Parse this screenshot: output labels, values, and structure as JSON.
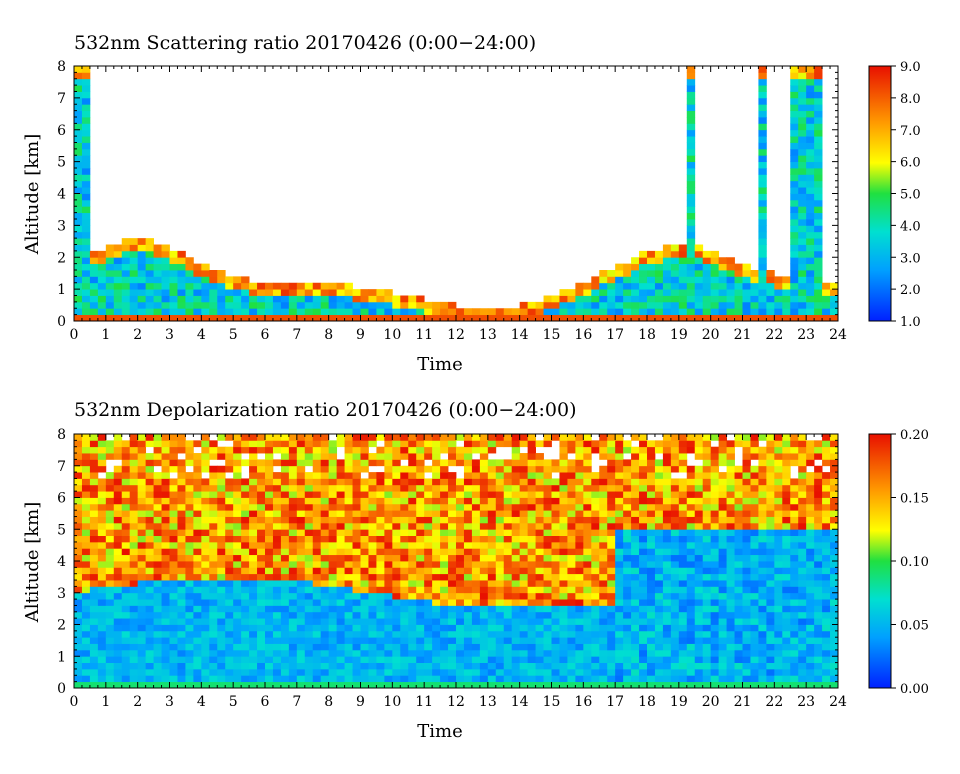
{
  "chart_data": [
    {
      "type": "heatmap",
      "title": "532nm Scattering ratio  20170426 (0:00−24:00)",
      "xlabel": "Time",
      "ylabel": "Altitude [km]",
      "xlim": [
        0,
        24
      ],
      "ylim": [
        0,
        8
      ],
      "xticks": [
        "0",
        "1",
        "2",
        "3",
        "4",
        "5",
        "6",
        "7",
        "8",
        "9",
        "10",
        "11",
        "12",
        "13",
        "14",
        "15",
        "16",
        "17",
        "18",
        "19",
        "20",
        "21",
        "22",
        "23",
        "24"
      ],
      "yticks": [
        "0",
        "1",
        "2",
        "3",
        "4",
        "5",
        "6",
        "7",
        "8"
      ],
      "colorbar": {
        "min": 1.0,
        "max": 9.0,
        "ticks": [
          "1.0",
          "2.0",
          "3.0",
          "4.0",
          "5.0",
          "6.0",
          "7.0",
          "8.0",
          "9.0"
        ]
      },
      "colormap": [
        "#0000ff",
        "#00d0ff",
        "#00e040",
        "#ffff00",
        "#ff8000",
        "#e00000"
      ]
    },
    {
      "type": "heatmap",
      "title": "532nm Depolarization ratio  20170426 (0:00−24:00)",
      "xlabel": "Time",
      "ylabel": "Altitude [km]",
      "xlim": [
        0,
        24
      ],
      "ylim": [
        0,
        8
      ],
      "xticks": [
        "0",
        "1",
        "2",
        "3",
        "4",
        "5",
        "6",
        "7",
        "8",
        "9",
        "10",
        "11",
        "12",
        "13",
        "14",
        "15",
        "16",
        "17",
        "18",
        "19",
        "20",
        "21",
        "22",
        "23",
        "24"
      ],
      "yticks": [
        "0",
        "1",
        "2",
        "3",
        "4",
        "5",
        "6",
        "7",
        "8"
      ],
      "colorbar": {
        "min": 0.0,
        "max": 0.2,
        "ticks": [
          "0.00",
          "0.05",
          "0.10",
          "0.15",
          "0.20"
        ]
      },
      "colormap": [
        "#0000ff",
        "#00d0ff",
        "#00e040",
        "#ffff00",
        "#ff8000",
        "#e00000"
      ]
    }
  ]
}
